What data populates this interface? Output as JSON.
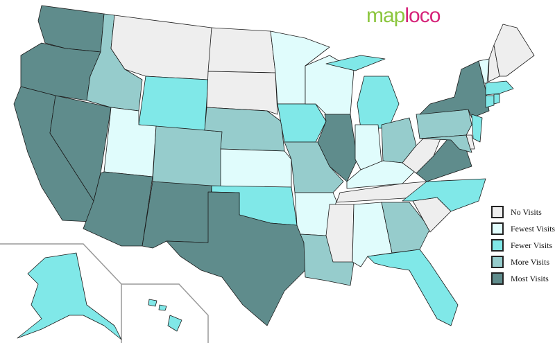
{
  "logo": {
    "part1": "map",
    "part2": "loco"
  },
  "legend": [
    {
      "key": "none",
      "label": "No Visits",
      "color": "#eeeeee"
    },
    {
      "key": "fewest",
      "label": "Fewest Visits",
      "color": "#e0fcfc"
    },
    {
      "key": "fewer",
      "label": "Fewer Visits",
      "color": "#80e8e8"
    },
    {
      "key": "more",
      "label": "More Visits",
      "color": "#96cccc"
    },
    {
      "key": "most",
      "label": "Most Visits",
      "color": "#5f8c8c"
    }
  ],
  "states": {
    "WA": "most",
    "OR": "most",
    "CA": "most",
    "NV": "most",
    "ID": "more",
    "MT": "none",
    "WY": "fewer",
    "UT": "fewest",
    "AZ": "most",
    "CO": "more",
    "NM": "most",
    "ND": "none",
    "SD": "none",
    "NE": "more",
    "KS": "fewest",
    "OK": "fewer",
    "TX": "most",
    "MN": "fewest",
    "IA": "fewer",
    "MO": "more",
    "AR": "fewest",
    "LA": "more",
    "WI": "fewest",
    "IL": "most",
    "MI": "fewer",
    "IN": "fewest",
    "OH": "more",
    "KY": "fewest",
    "TN": "none",
    "MS": "none",
    "AL": "fewest",
    "GA": "more",
    "FL": "fewer",
    "SC": "none",
    "NC": "fewer",
    "VA": "most",
    "WV": "none",
    "PA": "more",
    "NY": "most",
    "MD": "more",
    "DE": "none",
    "NJ": "fewer",
    "CT": "fewer",
    "RI": "fewer",
    "MA": "fewer",
    "VT": "fewest",
    "NH": "none",
    "ME": "none",
    "AK": "fewer",
    "HI": "fewer"
  }
}
